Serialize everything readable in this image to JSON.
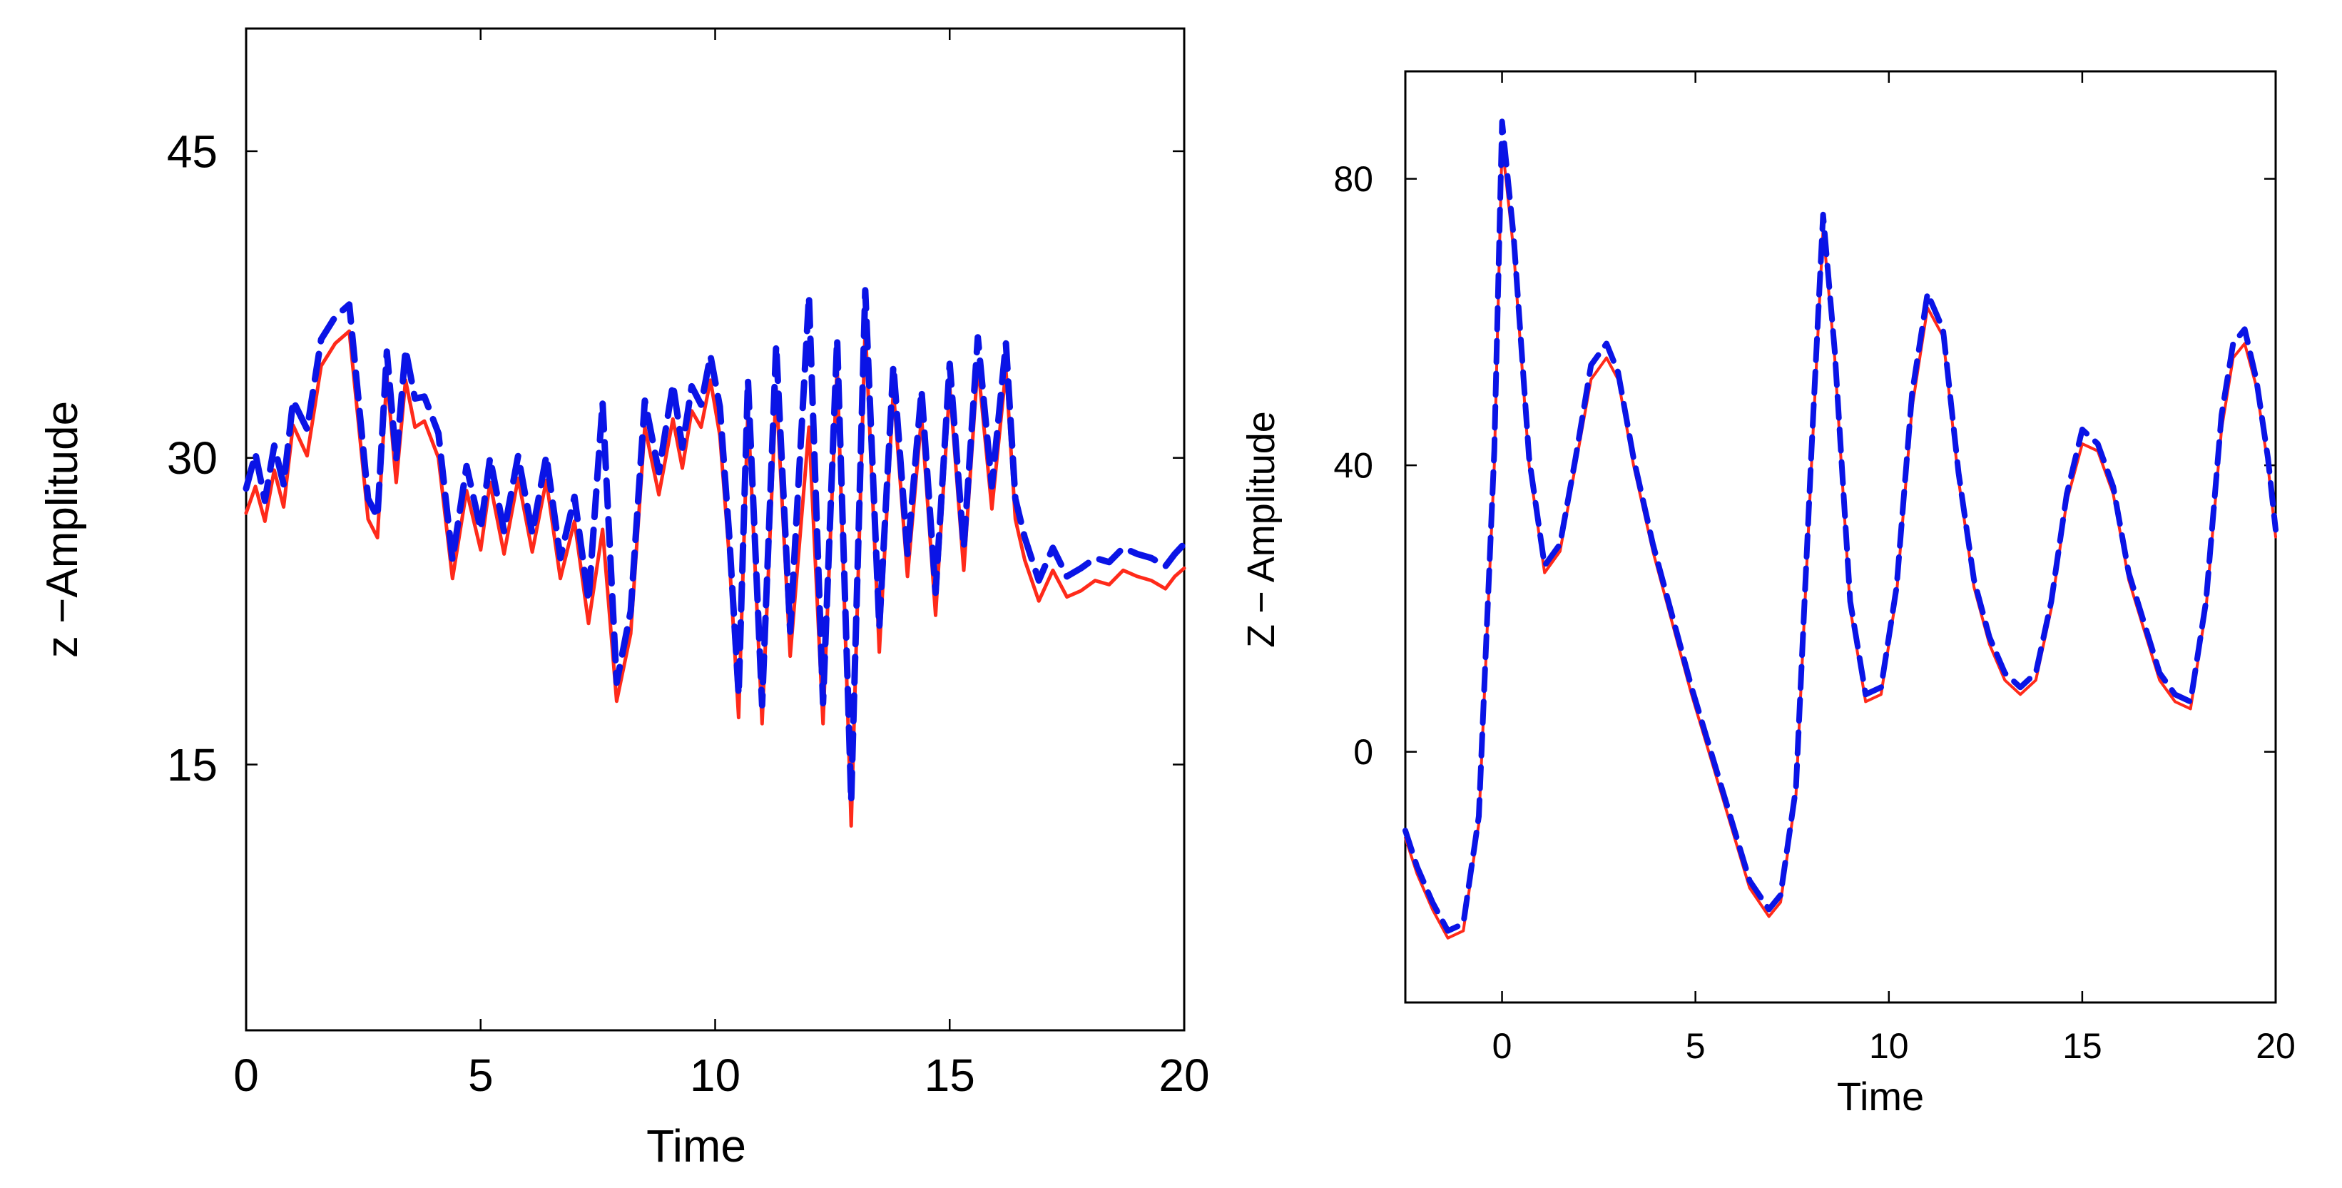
{
  "chart_data": [
    {
      "type": "line",
      "xlabel": "Time",
      "ylabel": "z −Amplitude",
      "xlim": [
        0,
        20
      ],
      "ylim": [
        2,
        51
      ],
      "xticks": [
        0,
        5,
        10,
        15,
        20
      ],
      "xtick_labels": [
        "0",
        "5",
        "10",
        "15",
        "20"
      ],
      "yticks": [
        15,
        30,
        45
      ],
      "ytick_labels": [
        "15",
        "30",
        "45"
      ],
      "grid": false,
      "series": [
        {
          "name": "solid",
          "color": "#ff2a1a",
          "style": "solid",
          "x": [
            0,
            0.2,
            0.4,
            0.6,
            0.8,
            1.0,
            1.3,
            1.6,
            1.9,
            2.2,
            2.6,
            2.8,
            3.0,
            3.2,
            3.4,
            3.6,
            3.8,
            4.1,
            4.4,
            4.7,
            5.0,
            5.2,
            5.5,
            5.8,
            6.1,
            6.4,
            6.7,
            7.0,
            7.3,
            7.6,
            7.9,
            8.2,
            8.5,
            8.8,
            9.1,
            9.3,
            9.5,
            9.7,
            9.9,
            10.1,
            10.3,
            10.5,
            10.7,
            11.0,
            11.3,
            11.6,
            12.0,
            12.3,
            12.6,
            12.9,
            13.2,
            13.5,
            13.8,
            14.1,
            14.4,
            14.7,
            15.0,
            15.3,
            15.6,
            15.9,
            16.2,
            16.4,
            16.6,
            16.9,
            17.2,
            17.5,
            17.8,
            18.1,
            18.4,
            18.7,
            19.0,
            19.3,
            19.6,
            19.8,
            20.0
          ],
          "y": [
            27.3,
            28.6,
            26.9,
            29.4,
            27.6,
            31.6,
            30.1,
            34.5,
            35.6,
            36.2,
            27.0,
            26.1,
            34.0,
            28.8,
            33.8,
            31.5,
            31.8,
            30.0,
            24.1,
            28.4,
            25.5,
            28.8,
            25.3,
            29.0,
            25.4,
            28.9,
            24.1,
            26.9,
            21.9,
            26.5,
            18.1,
            21.4,
            31.5,
            28.2,
            31.9,
            29.5,
            32.3,
            31.5,
            33.8,
            31.1,
            25.2,
            17.3,
            32.4,
            17.0,
            33.4,
            20.3,
            31.5,
            17.0,
            34.5,
            12.0,
            36.5,
            20.5,
            33.3,
            24.2,
            32.0,
            22.3,
            33.5,
            24.5,
            34.6,
            27.5,
            34.3,
            27.0,
            25.0,
            23.0,
            24.5,
            23.2,
            23.5,
            24.0,
            23.8,
            24.5,
            24.2,
            24.0,
            23.6,
            24.2,
            24.6
          ]
        },
        {
          "name": "dashed",
          "color": "#0a14e6",
          "style": "dashed",
          "x": [
            0,
            0.2,
            0.4,
            0.6,
            0.8,
            1.0,
            1.3,
            1.6,
            1.9,
            2.2,
            2.6,
            2.8,
            3.0,
            3.2,
            3.4,
            3.6,
            3.8,
            4.1,
            4.4,
            4.7,
            5.0,
            5.2,
            5.5,
            5.8,
            6.1,
            6.4,
            6.7,
            7.0,
            7.3,
            7.6,
            7.9,
            8.2,
            8.5,
            8.8,
            9.1,
            9.3,
            9.5,
            9.7,
            9.9,
            10.1,
            10.3,
            10.5,
            10.7,
            11.0,
            11.3,
            11.6,
            12.0,
            12.3,
            12.6,
            12.9,
            13.2,
            13.5,
            13.8,
            14.1,
            14.4,
            14.7,
            15.0,
            15.3,
            15.6,
            15.9,
            16.2,
            16.4,
            16.6,
            16.9,
            17.2,
            17.5,
            17.8,
            18.1,
            18.4,
            18.7,
            19.0,
            19.3,
            19.6,
            19.8,
            20.0
          ],
          "y": [
            28.5,
            30.2,
            27.9,
            30.6,
            28.7,
            32.8,
            31.4,
            35.8,
            36.9,
            37.5,
            28.0,
            27.1,
            35.2,
            29.9,
            35.3,
            32.9,
            33.0,
            31.2,
            25.0,
            29.6,
            26.5,
            30.0,
            26.4,
            30.1,
            26.3,
            30.1,
            25.1,
            28.1,
            23.0,
            32.7,
            19.0,
            22.5,
            32.8,
            29.3,
            33.6,
            30.5,
            33.5,
            32.6,
            35.0,
            32.5,
            26.2,
            18.4,
            33.8,
            17.9,
            35.5,
            21.5,
            37.9,
            18.0,
            35.8,
            13.2,
            38.2,
            21.7,
            34.5,
            25.3,
            33.3,
            23.4,
            34.6,
            25.6,
            35.9,
            28.6,
            35.6,
            28.0,
            26.1,
            24.0,
            25.6,
            24.2,
            24.6,
            25.1,
            24.9,
            25.6,
            25.3,
            25.1,
            24.7,
            25.3,
            25.8
          ]
        }
      ]
    },
    {
      "type": "line",
      "xlabel": "Time",
      "ylabel": "Z − Amplitude",
      "xlim": [
        -2.5,
        20
      ],
      "ylim": [
        -35,
        95
      ],
      "xticks": [
        0,
        5,
        10,
        15,
        20
      ],
      "xtick_labels": [
        "0",
        "5",
        "10",
        "15",
        "20"
      ],
      "yticks": [
        0,
        40,
        80
      ],
      "ytick_labels": [
        "0",
        "40",
        "80"
      ],
      "grid": false,
      "series": [
        {
          "name": "solid",
          "color": "#ff2a1a",
          "style": "solid",
          "x": [
            -2.5,
            -2.2,
            -1.8,
            -1.4,
            -1.0,
            -0.6,
            -0.2,
            0,
            0.3,
            0.7,
            1.1,
            1.5,
            1.9,
            2.3,
            2.7,
            3.0,
            3.4,
            3.9,
            4.4,
            4.9,
            5.4,
            5.9,
            6.4,
            6.9,
            7.2,
            7.6,
            8.0,
            8.3,
            8.6,
            9.0,
            9.4,
            9.8,
            10.2,
            10.6,
            11.0,
            11.4,
            11.8,
            12.2,
            12.6,
            13.0,
            13.4,
            13.8,
            14.2,
            14.6,
            15.0,
            15.4,
            15.8,
            16.2,
            16.6,
            17.0,
            17.4,
            17.8,
            18.2,
            18.6,
            18.9,
            19.2,
            19.5,
            19.8,
            20.0
          ],
          "y": [
            -12,
            -17,
            -22,
            -26,
            -25,
            -10,
            40,
            85,
            70,
            40,
            25,
            28,
            40,
            52,
            55,
            52,
            40,
            28,
            18,
            8,
            -1,
            -10,
            -19,
            -23,
            -21,
            -6,
            40,
            73,
            55,
            20,
            7,
            8,
            22,
            48,
            62,
            58,
            38,
            23,
            15,
            10,
            8,
            10,
            20,
            35,
            43,
            42,
            36,
            24,
            17,
            10,
            7,
            6,
            20,
            45,
            55,
            57,
            51,
            40,
            30
          ]
        },
        {
          "name": "dashed",
          "color": "#0a14e6",
          "style": "dashed",
          "x": [
            -2.5,
            -2.2,
            -1.8,
            -1.4,
            -1.0,
            -0.6,
            -0.2,
            0,
            0.3,
            0.7,
            1.1,
            1.5,
            1.9,
            2.3,
            2.7,
            3.0,
            3.4,
            3.9,
            4.4,
            4.9,
            5.4,
            5.9,
            6.4,
            6.9,
            7.2,
            7.6,
            8.0,
            8.3,
            8.6,
            9.0,
            9.4,
            9.8,
            10.2,
            10.6,
            11.0,
            11.4,
            11.8,
            12.2,
            12.6,
            13.0,
            13.4,
            13.8,
            14.2,
            14.6,
            15.0,
            15.4,
            15.8,
            16.2,
            16.6,
            17.0,
            17.4,
            17.8,
            18.2,
            18.6,
            18.9,
            19.2,
            19.5,
            19.8,
            20.0
          ],
          "y": [
            -11,
            -16,
            -21,
            -25,
            -24,
            -9,
            42,
            88,
            72,
            41,
            26,
            29,
            41,
            54,
            57,
            53,
            41,
            29,
            19,
            9,
            0,
            -9,
            -18,
            -22,
            -20,
            -5,
            42,
            75,
            56,
            21,
            8,
            9,
            23,
            50,
            64,
            59,
            39,
            24,
            16,
            11,
            9,
            11,
            21,
            36,
            45,
            43,
            37,
            25,
            18,
            11,
            8,
            7,
            21,
            47,
            57,
            59,
            52,
            41,
            31
          ]
        }
      ]
    }
  ]
}
